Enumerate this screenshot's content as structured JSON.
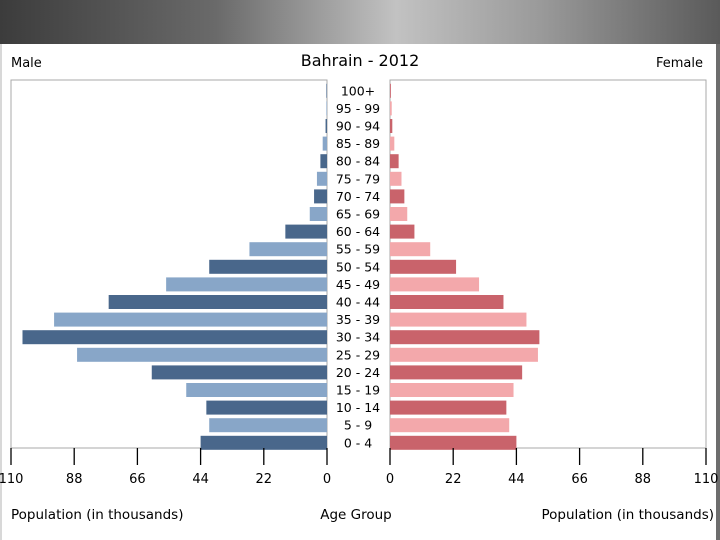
{
  "chart_data": {
    "type": "bar",
    "orientation": "horizontal",
    "title": "Bahrain - 2012",
    "left_label": "Male",
    "right_label": "Female",
    "center_axis_label": "Age Group",
    "left_xlabel": "Population (in thousands)",
    "right_xlabel": "Population (in thousands)",
    "xlim": [
      0,
      110
    ],
    "xticks": [
      "0",
      "22",
      "44",
      "66",
      "88",
      "110"
    ],
    "grid": false,
    "categories": [
      "100+",
      "95 - 99",
      "90 - 94",
      "85 - 89",
      "80 - 84",
      "75 - 79",
      "70 - 74",
      "65 - 69",
      "60 - 64",
      "55 - 59",
      "50 - 54",
      "45 - 49",
      "40 - 44",
      "35 - 39",
      "30 - 34",
      "25 - 29",
      "20 - 24",
      "15 - 19",
      "10 - 14",
      "5 - 9",
      "0 - 4"
    ],
    "series": [
      {
        "name": "Male",
        "values": [
          0.1,
          0.2,
          0.5,
          1.5,
          2.3,
          3.5,
          4.5,
          6.0,
          14.5,
          27.0,
          41.0,
          56.0,
          76.0,
          95.0,
          106.0,
          87.0,
          61.0,
          49.0,
          42.0,
          41.0,
          44.0
        ],
        "colors": [
          "#49678b",
          "#88a6c8"
        ]
      },
      {
        "name": "Female",
        "values": [
          0.3,
          0.6,
          0.8,
          1.5,
          3.0,
          4.0,
          5.0,
          6.0,
          8.5,
          14.0,
          23.0,
          31.0,
          39.5,
          47.5,
          52.0,
          51.5,
          46.0,
          43.0,
          40.5,
          41.5,
          44.0
        ],
        "colors": [
          "#c9636b",
          "#f3a8ab"
        ]
      }
    ]
  }
}
